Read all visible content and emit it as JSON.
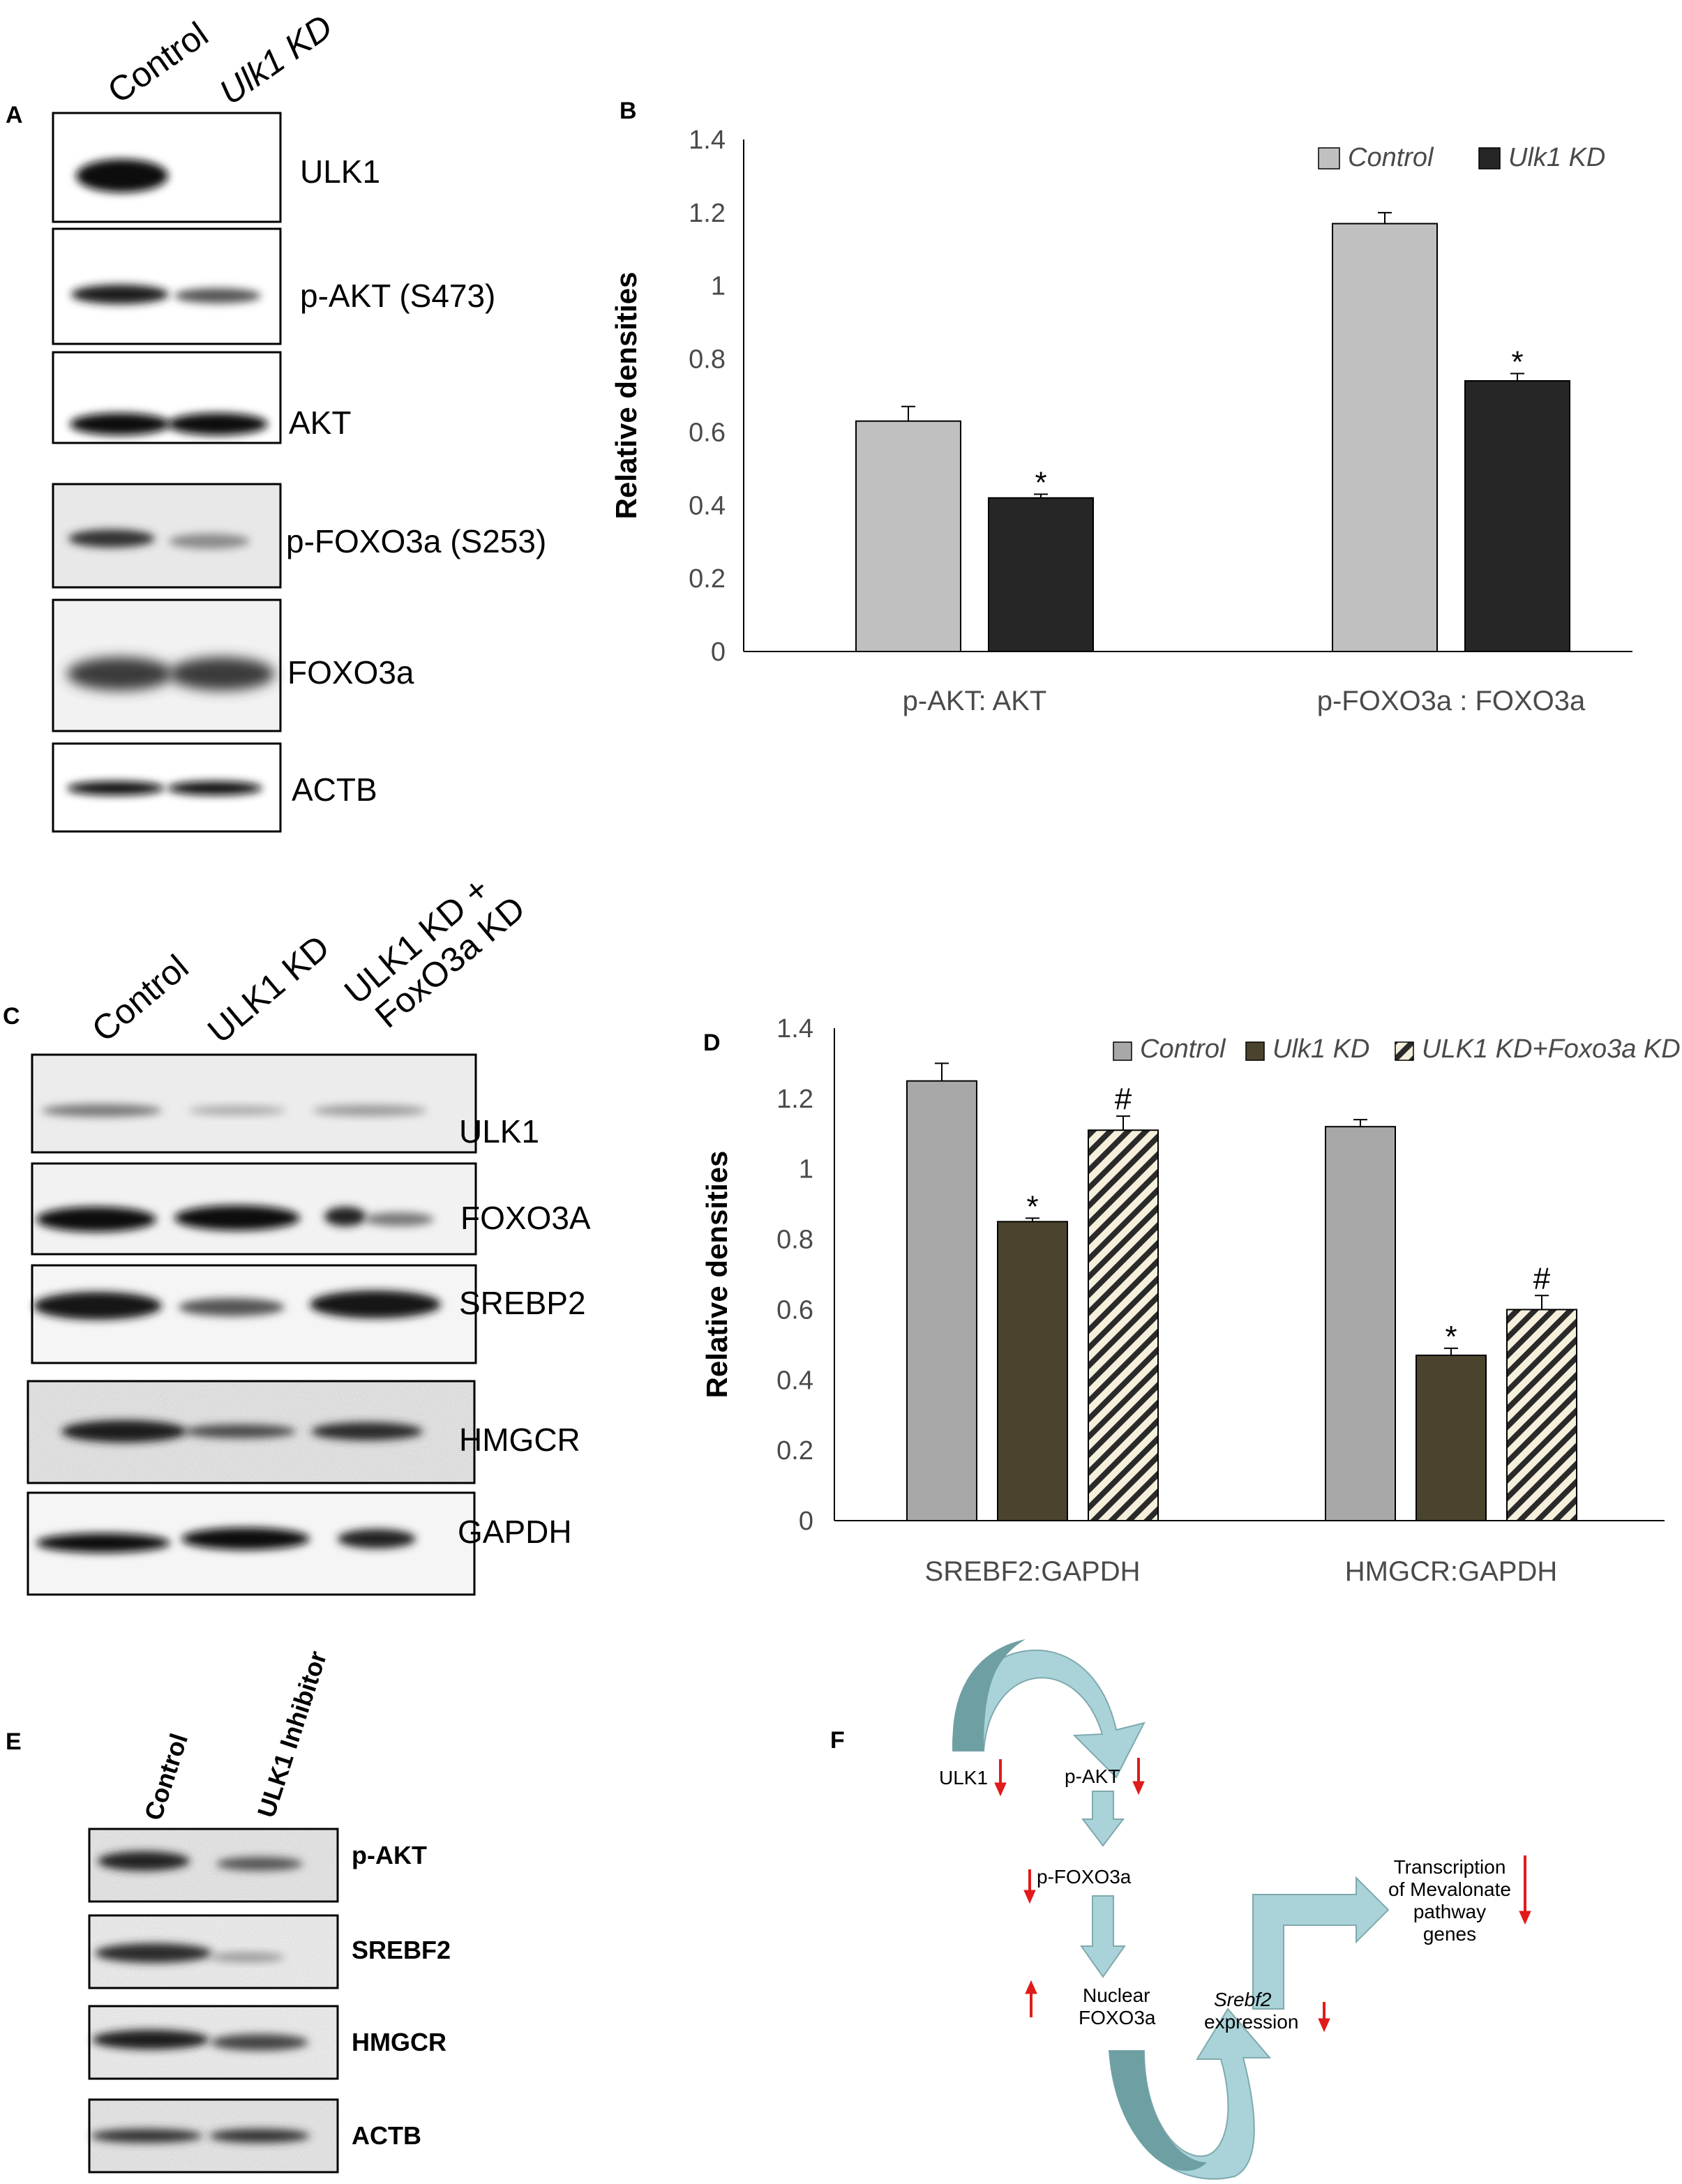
{
  "panels": {
    "A": {
      "label": "A",
      "lanes": [
        "Control",
        "Ulk1 KD"
      ],
      "blots": [
        "ULK1",
        "p-AKT (S473)",
        "AKT",
        "p-FOXO3a (S253)",
        "FOXO3a",
        "ACTB"
      ]
    },
    "C": {
      "label": "C",
      "lanes": [
        "Control",
        "ULK1 KD",
        "ULK1 KD +",
        "FoxO3a KD"
      ],
      "blots": [
        "ULK1",
        "FOXO3A",
        "SREBP2",
        "HMGCR",
        "GAPDH"
      ]
    },
    "E": {
      "label": "E",
      "lanes": [
        "Control",
        "ULK1 Inhibitor"
      ],
      "blots": [
        "p-AKT",
        "SREBF2",
        "HMGCR",
        "ACTB"
      ]
    },
    "F": {
      "label": "F",
      "nodes": {
        "ulk1": "ULK1",
        "pakt": "p-AKT",
        "pfoxo": "p-FOXO3a",
        "nuclear1": "Nuclear",
        "nuclear2": "FOXO3a",
        "srebf2_1": "Srebf2",
        "srebf2_2": "expression",
        "trans1": "Transcription",
        "trans2": "of Mevalonate",
        "trans3": "pathway",
        "trans4": "genes"
      },
      "arrow_color": "#e11b1b",
      "flow_color": "#a9d3d9",
      "flow_dark": "#6e9fa3"
    }
  },
  "chart_data": [
    {
      "panel": "B",
      "type": "bar",
      "ylabel": "Relative densities",
      "ylim": [
        0,
        1.4
      ],
      "yticks": [
        "0",
        "0.2",
        "0.4",
        "0.6",
        "0.8",
        "1",
        "1.2",
        "1.4"
      ],
      "grid": false,
      "legend_position": "top-right",
      "categories": [
        "p-AKT: AKT",
        "p-FOXO3a : FOXO3a"
      ],
      "series": [
        {
          "name": "Control",
          "values": [
            0.63,
            1.17
          ],
          "errors": [
            0.04,
            0.03
          ],
          "color": "#c0c0c0",
          "pattern": "solid",
          "marks": [
            "",
            ""
          ]
        },
        {
          "name": "Ulk1 KD",
          "values": [
            0.42,
            0.74
          ],
          "errors": [
            0.01,
            0.02
          ],
          "color": "#262626",
          "pattern": "solid",
          "marks": [
            "*",
            "*"
          ]
        }
      ]
    },
    {
      "panel": "D",
      "type": "bar",
      "ylabel": "Relative densities",
      "ylim": [
        0,
        1.4
      ],
      "yticks": [
        "0",
        "0.2",
        "0.4",
        "0.6",
        "0.8",
        "1",
        "1.2",
        "1.4"
      ],
      "grid": false,
      "legend_position": "top-right",
      "categories": [
        "SREBF2:GAPDH",
        "HMGCR:GAPDH"
      ],
      "series": [
        {
          "name": "Control",
          "values": [
            1.25,
            1.12
          ],
          "errors": [
            0.05,
            0.02
          ],
          "color": "#a8a8a8",
          "pattern": "solid",
          "marks": [
            "",
            ""
          ]
        },
        {
          "name": "Ulk1 KD",
          "values": [
            0.85,
            0.47
          ],
          "errors": [
            0.01,
            0.02
          ],
          "color": "#4a442e",
          "pattern": "solid",
          "marks": [
            "*",
            "*"
          ]
        },
        {
          "name": "ULK1 KD+Foxo3a KD",
          "values": [
            1.11,
            0.6
          ],
          "errors": [
            0.04,
            0.04
          ],
          "color": "#f5f0dc",
          "pattern": "hatch",
          "marks": [
            "#",
            "#"
          ]
        }
      ]
    }
  ]
}
